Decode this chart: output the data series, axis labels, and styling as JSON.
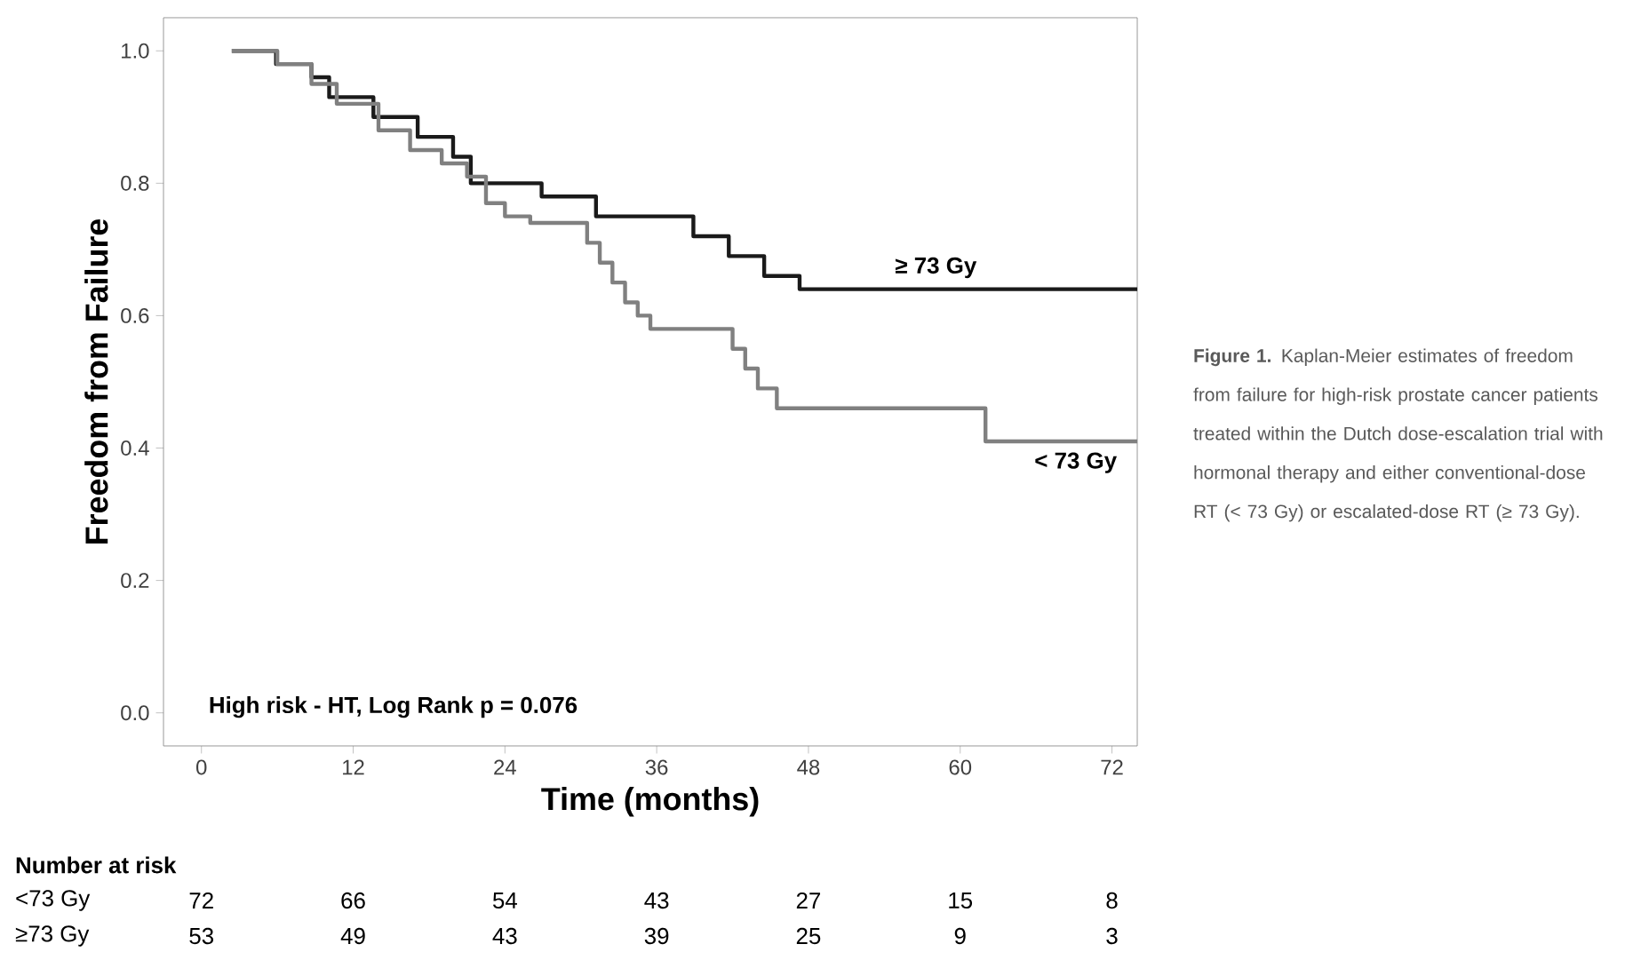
{
  "chart_data": {
    "type": "step",
    "xlabel": "Time (months)",
    "ylabel": "Freedom from Failure",
    "xlim": [
      -3,
      74
    ],
    "ylim": [
      -0.05,
      1.05
    ],
    "xticks": [
      0,
      12,
      24,
      36,
      48,
      60,
      72
    ],
    "yticks": [
      {
        "value": 0,
        "label": "0.0"
      },
      {
        "value": 0.2,
        "label": "0.2"
      },
      {
        "value": 0.4,
        "label": "0.4"
      },
      {
        "value": 0.6,
        "label": "0.6"
      },
      {
        "value": 0.8,
        "label": "0.8"
      },
      {
        "value": 1,
        "label": "1.0"
      }
    ],
    "grid": false,
    "marker": "none",
    "line_style": "solid",
    "series": [
      {
        "name": "≥ 73 Gy",
        "color": "#1a1a1a",
        "x": [
          2.4,
          5.9,
          8.7,
          10.1,
          13.6,
          17.1,
          19.9,
          21.3,
          26.9,
          31.2,
          38.9,
          41.7,
          44.5,
          47.3,
          74
        ],
        "values": [
          1.0,
          0.98,
          0.96,
          0.93,
          0.9,
          0.87,
          0.84,
          0.8,
          0.78,
          0.75,
          0.72,
          0.69,
          0.66,
          0.64,
          0.64
        ]
      },
      {
        "name": "< 73 Gy",
        "color": "#808080",
        "x": [
          2.4,
          6,
          8.7,
          10.7,
          14,
          16.5,
          19,
          21,
          22.5,
          24,
          26,
          30.5,
          31.5,
          32.5,
          33.5,
          34.5,
          35.5,
          42,
          43,
          44,
          45.5,
          62,
          74
        ],
        "values": [
          1.0,
          0.98,
          0.95,
          0.92,
          0.88,
          0.85,
          0.83,
          0.81,
          0.77,
          0.75,
          0.74,
          0.71,
          0.68,
          0.65,
          0.62,
          0.6,
          0.58,
          0.55,
          0.52,
          0.49,
          0.46,
          0.41,
          0.41
        ]
      }
    ],
    "annotations": [
      "**Figure 1.** Kaplan-Meier estimates of freedom from failure for high-risk prostate cancer patients treated within the Dutch dose-escalation trial with hormonal therapy and either conventional-dose RT (< 73 Gy) or escalated-dose RT (≥ 73 Gy).",
      "High risk - HT, Log Rank p = 0.076",
      "Number at risk",
      "<73 Gy",
      "72",
      "66",
      "54",
      "43",
      "27",
      "15",
      "8",
      "≥73 Gy",
      "53",
      "49",
      "43",
      "39",
      "25",
      "9",
      "3"
    ]
  }
}
